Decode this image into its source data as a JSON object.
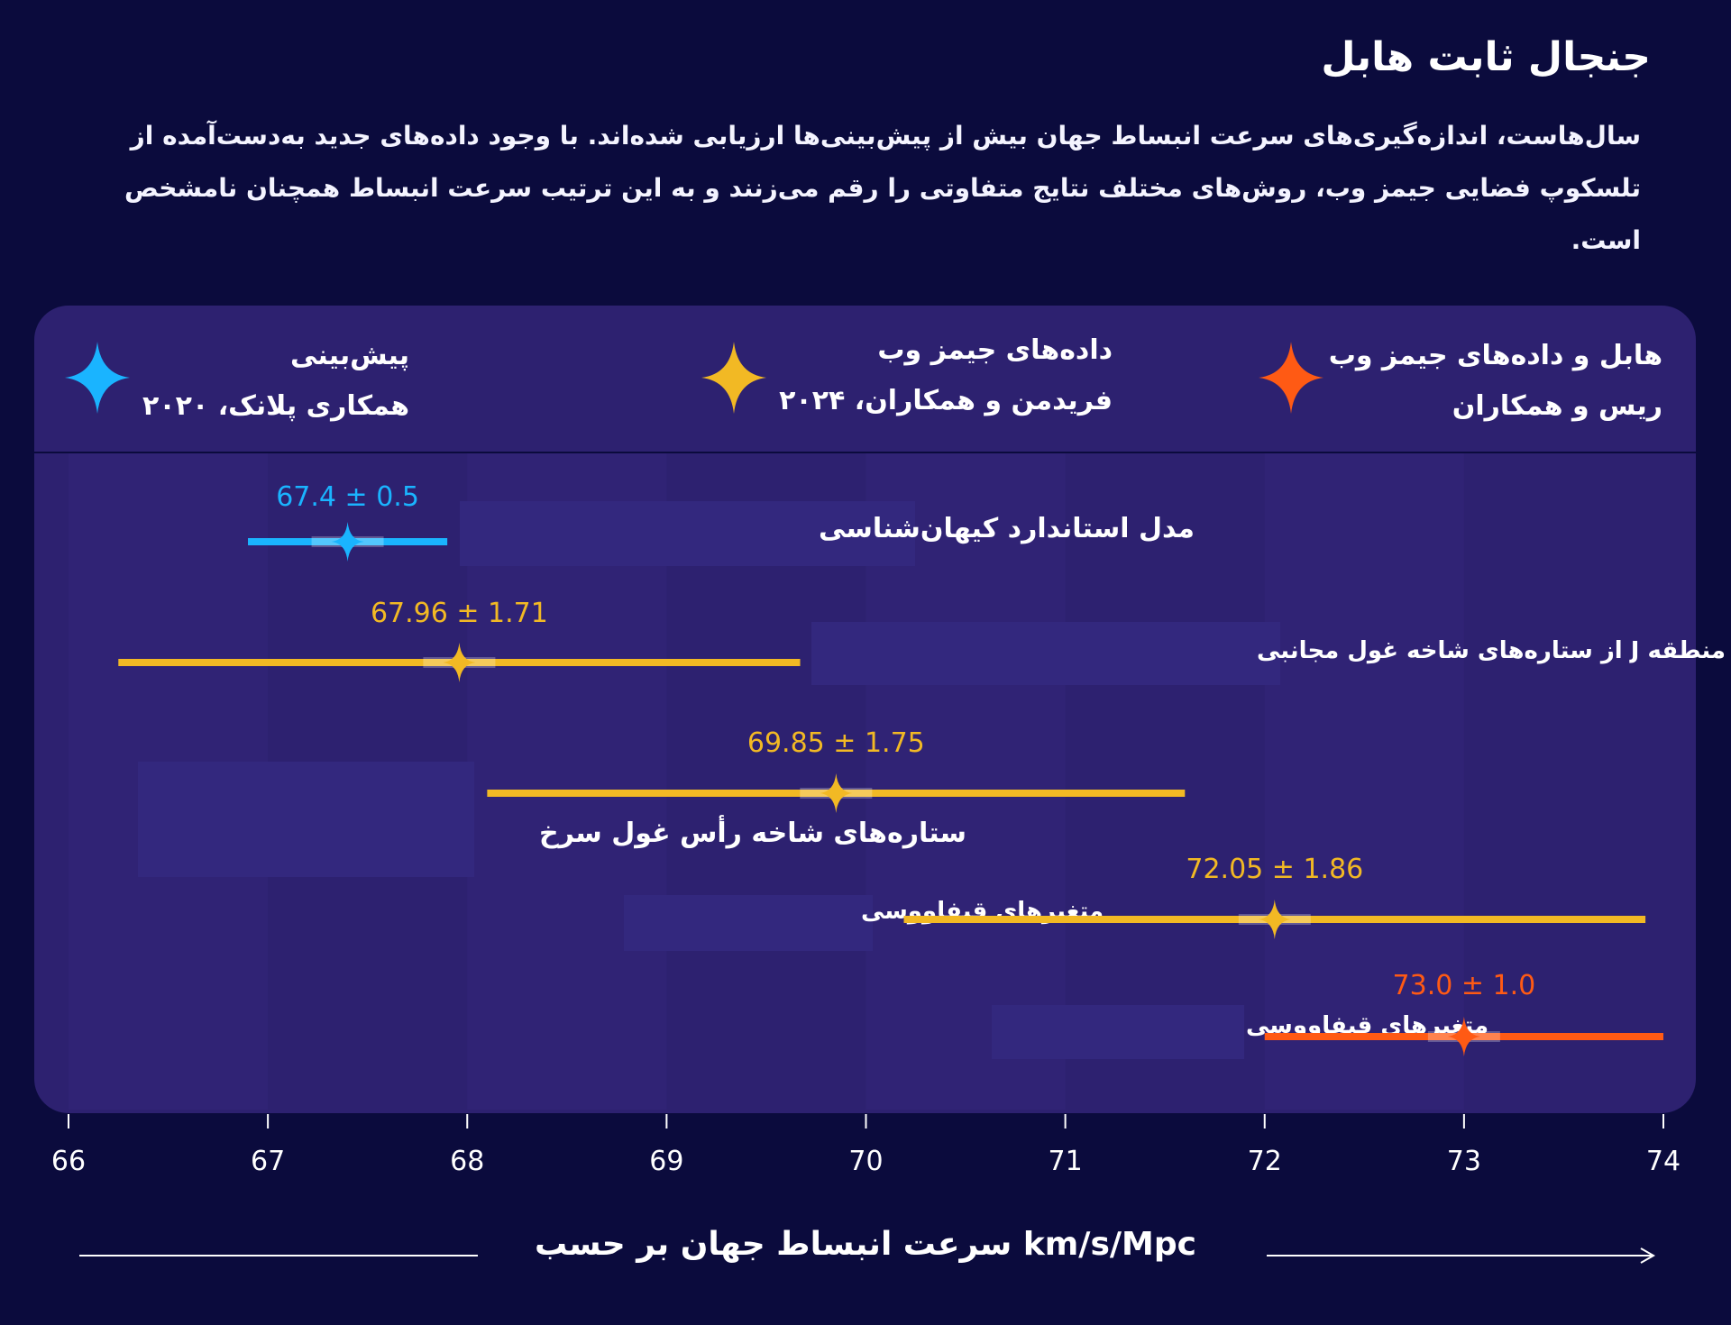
{
  "title": "جنجال ثابت هابل",
  "subtitle_line1": "سال‌هاست، اندازه‌گیری‌های سرعت انبساط جهان بیش از پیش‌بینی‌ها ارزیابی شده‌اند. با وجود داده‌های جدید به‌دست‌آمده از",
  "subtitle_line2": "تلسکوپ فضایی جیمز وب، روش‌های مختلف نتایج متفاوتی را رقم می‌زنند و  به این ترتیب سرعت انبساط همچنان نامشخص است.",
  "legend": [
    {
      "line1": "هابل و داده‌های جیمز وب",
      "line2": "ریس و همکاران",
      "color": "#ff5a14",
      "icon": "star-orange-icon"
    },
    {
      "line1": "داده‌های جیمز وب",
      "line2": "فریدمن و همکاران، ۲۰۲۴",
      "color": "#f2b924",
      "icon": "star-yellow-icon"
    },
    {
      "line1": "پیش‌بینی",
      "line2": "همکاری پلانک، ۲۰۲۰",
      "color": "#1ab4ff",
      "icon": "star-blue-icon"
    }
  ],
  "colors": {
    "blue": "#1ab4ff",
    "yellow": "#f2b924",
    "orange": "#ff5a14",
    "panel": "#2d2170",
    "background": "#0b0b3d"
  },
  "xaxis_title": "km/s/Mpc سرعت انبساط جهان  بر حسب",
  "chart_data": {
    "type": "errorbar",
    "xlim": [
      66,
      74
    ],
    "xticks": [
      "66",
      "67",
      "68",
      "69",
      "70",
      "71",
      "72",
      "73",
      "74"
    ],
    "series": [
      {
        "method": "مدل استاندارد کیهان‌شناسی",
        "value": 67.4,
        "error": 0.5,
        "label": "67.4 ± 0.5",
        "color": "#1ab4ff"
      },
      {
        "method": "منطقه J از ستاره‌های شاخه غول مجانبی",
        "value": 67.96,
        "error": 1.71,
        "label": "67.96 ± 1.71",
        "color": "#f2b924"
      },
      {
        "method": "ستاره‌های شاخه رأس غول سرخ",
        "value": 69.85,
        "error": 1.75,
        "label": "69.85 ± 1.75",
        "color": "#f2b924"
      },
      {
        "method": "متغیرهای قیفاووسی",
        "value": 72.05,
        "error": 1.86,
        "label": "72.05 ± 1.86",
        "color": "#f2b924"
      },
      {
        "method": "متغیرهای قیفاووسی",
        "value": 73.0,
        "error": 1.0,
        "label": "73.0 ± 1.0",
        "color": "#ff5a14"
      }
    ]
  }
}
